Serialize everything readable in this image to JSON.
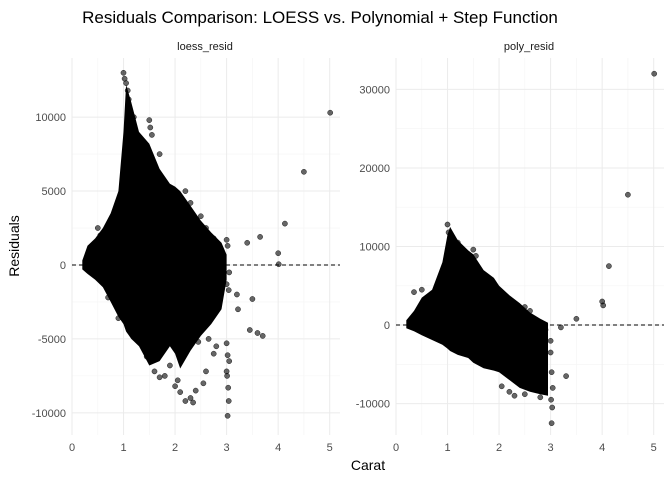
{
  "chart_data": {
    "type": "scatter",
    "title": "Residuals Comparison: LOESS vs. Polynomial + Step Function",
    "xlabel": "Carat",
    "ylabel": "Residuals",
    "grid": true,
    "reference_line": {
      "y": 0,
      "style": "dashed"
    },
    "colors": {
      "points": "#000000",
      "grid": "#ebebeb",
      "text": "#4d4d4d"
    },
    "panels": [
      {
        "name": "loess_resid",
        "xlim": [
          0,
          5.2
        ],
        "ylim": [
          -11500,
          14000
        ],
        "xticks": [
          0,
          1,
          2,
          3,
          4,
          5
        ],
        "yticks": [
          -10000,
          -5000,
          0,
          5000,
          10000
        ],
        "dense_envelope": {
          "x": [
            0.2,
            0.3,
            0.45,
            0.6,
            0.75,
            0.9,
            1.0,
            1.05,
            1.15,
            1.3,
            1.5,
            1.7,
            1.9,
            2.0,
            2.1,
            2.3,
            2.5,
            2.7,
            2.9,
            3.0
          ],
          "upper": [
            300,
            1300,
            1800,
            2500,
            3500,
            5000,
            9000,
            12200,
            11000,
            9000,
            8200,
            6500,
            5500,
            5300,
            5000,
            4000,
            3000,
            2200,
            1500,
            700
          ],
          "lower": [
            -300,
            -600,
            -1000,
            -1500,
            -2500,
            -3500,
            -4000,
            -4500,
            -5000,
            -5500,
            -6800,
            -6500,
            -5500,
            -6000,
            -7000,
            -5800,
            -4800,
            -4000,
            -3000,
            -1000
          ]
        },
        "points": [
          {
            "x": 1.0,
            "y": 13000
          },
          {
            "x": 1.02,
            "y": 12600
          },
          {
            "x": 1.05,
            "y": 12300
          },
          {
            "x": 1.08,
            "y": 11800
          },
          {
            "x": 1.1,
            "y": 11200
          },
          {
            "x": 1.2,
            "y": 10000
          },
          {
            "x": 1.5,
            "y": 9800
          },
          {
            "x": 1.52,
            "y": 9300
          },
          {
            "x": 1.55,
            "y": 8800
          },
          {
            "x": 1.7,
            "y": 7500
          },
          {
            "x": 1.25,
            "y": 8000
          },
          {
            "x": 2.2,
            "y": 5000
          },
          {
            "x": 2.3,
            "y": 4200
          },
          {
            "x": 2.5,
            "y": 3300
          },
          {
            "x": 2.6,
            "y": 2500
          },
          {
            "x": 2.75,
            "y": 1800
          },
          {
            "x": 3.0,
            "y": 1700
          },
          {
            "x": 3.02,
            "y": 1300
          },
          {
            "x": 3.4,
            "y": 1500
          },
          {
            "x": 3.65,
            "y": 1900
          },
          {
            "x": 4.0,
            "y": 800
          },
          {
            "x": 4.01,
            "y": 50
          },
          {
            "x": 4.13,
            "y": 2800
          },
          {
            "x": 4.5,
            "y": 6300
          },
          {
            "x": 5.01,
            "y": 10300
          },
          {
            "x": 3.05,
            "y": -500
          },
          {
            "x": 3.0,
            "y": -1300
          },
          {
            "x": 3.04,
            "y": -1700
          },
          {
            "x": 3.2,
            "y": -2000
          },
          {
            "x": 3.22,
            "y": -3000
          },
          {
            "x": 3.5,
            "y": -2300
          },
          {
            "x": 3.6,
            "y": -4600
          },
          {
            "x": 3.45,
            "y": -4400
          },
          {
            "x": 3.7,
            "y": -4800
          },
          {
            "x": 3.0,
            "y": -5300
          },
          {
            "x": 3.02,
            "y": -6100
          },
          {
            "x": 3.05,
            "y": -6500
          },
          {
            "x": 3.0,
            "y": -7200
          },
          {
            "x": 3.01,
            "y": -7500
          },
          {
            "x": 3.03,
            "y": -8300
          },
          {
            "x": 3.04,
            "y": -9200
          },
          {
            "x": 3.02,
            "y": -10200
          },
          {
            "x": 2.8,
            "y": -5500
          },
          {
            "x": 2.75,
            "y": -6000
          },
          {
            "x": 2.6,
            "y": -7200
          },
          {
            "x": 2.55,
            "y": -8000
          },
          {
            "x": 2.4,
            "y": -8500
          },
          {
            "x": 2.3,
            "y": -9000
          },
          {
            "x": 2.35,
            "y": -9300
          },
          {
            "x": 2.2,
            "y": -9200
          },
          {
            "x": 2.1,
            "y": -8600
          },
          {
            "x": 2.0,
            "y": -8200
          },
          {
            "x": 2.05,
            "y": -7800
          },
          {
            "x": 1.8,
            "y": -7500
          },
          {
            "x": 1.7,
            "y": -7600
          },
          {
            "x": 1.6,
            "y": -7200
          },
          {
            "x": 1.9,
            "y": -6800
          },
          {
            "x": 2.15,
            "y": -6200
          },
          {
            "x": 2.45,
            "y": -5200
          },
          {
            "x": 2.65,
            "y": -5000
          },
          {
            "x": 1.45,
            "y": -6200
          },
          {
            "x": 1.3,
            "y": -5200
          },
          {
            "x": 0.9,
            "y": -3600
          },
          {
            "x": 0.7,
            "y": -2200
          },
          {
            "x": 2.9,
            "y": -600
          },
          {
            "x": 2.85,
            "y": 1200
          },
          {
            "x": 0.5,
            "y": 2500
          },
          {
            "x": 0.55,
            "y": 2000
          }
        ]
      },
      {
        "name": "poly_resid",
        "xlim": [
          0,
          5.2
        ],
        "ylim": [
          -14000,
          34000
        ],
        "xticks": [
          0,
          1,
          2,
          3,
          4,
          5
        ],
        "yticks": [
          -10000,
          0,
          10000,
          20000,
          30000
        ],
        "dense_envelope": {
          "x": [
            0.2,
            0.35,
            0.5,
            0.7,
            0.9,
            1.0,
            1.05,
            1.2,
            1.4,
            1.5,
            1.7,
            1.9,
            2.0,
            2.2,
            2.4,
            2.6,
            2.8,
            2.95
          ],
          "upper": [
            600,
            1800,
            3500,
            4500,
            8000,
            11500,
            12500,
            10800,
            9500,
            9000,
            7000,
            6000,
            5000,
            3800,
            2800,
            1600,
            800,
            300
          ],
          "lower": [
            -400,
            -800,
            -1300,
            -1900,
            -2500,
            -3000,
            -3300,
            -3800,
            -4200,
            -4800,
            -5500,
            -5800,
            -6000,
            -7000,
            -8000,
            -8500,
            -8800,
            -9000
          ]
        },
        "points": [
          {
            "x": 1.0,
            "y": 12800
          },
          {
            "x": 1.02,
            "y": 11800
          },
          {
            "x": 1.1,
            "y": 11000
          },
          {
            "x": 1.2,
            "y": 10500
          },
          {
            "x": 1.5,
            "y": 9600
          },
          {
            "x": 1.55,
            "y": 8800
          },
          {
            "x": 2.5,
            "y": 2300
          },
          {
            "x": 2.6,
            "y": 1800
          },
          {
            "x": 3.5,
            "y": 800
          },
          {
            "x": 3.2,
            "y": -300
          },
          {
            "x": 4.0,
            "y": 3000
          },
          {
            "x": 4.02,
            "y": 2500
          },
          {
            "x": 4.13,
            "y": 7500
          },
          {
            "x": 4.5,
            "y": 16600
          },
          {
            "x": 5.01,
            "y": 32000
          },
          {
            "x": 3.0,
            "y": -2000
          },
          {
            "x": 3.0,
            "y": -3500
          },
          {
            "x": 3.02,
            "y": -6000
          },
          {
            "x": 3.04,
            "y": -8000
          },
          {
            "x": 3.01,
            "y": -9500
          },
          {
            "x": 3.03,
            "y": -10500
          },
          {
            "x": 3.02,
            "y": -12500
          },
          {
            "x": 3.3,
            "y": -6500
          },
          {
            "x": 2.8,
            "y": -9200
          },
          {
            "x": 2.5,
            "y": -8800
          },
          {
            "x": 2.2,
            "y": -8500
          },
          {
            "x": 2.3,
            "y": -9000
          },
          {
            "x": 2.05,
            "y": -7800
          },
          {
            "x": 0.35,
            "y": 4200
          },
          {
            "x": 0.5,
            "y": 4500
          },
          {
            "x": 0.7,
            "y": 3800
          },
          {
            "x": 2.9,
            "y": -600
          }
        ]
      }
    ]
  }
}
